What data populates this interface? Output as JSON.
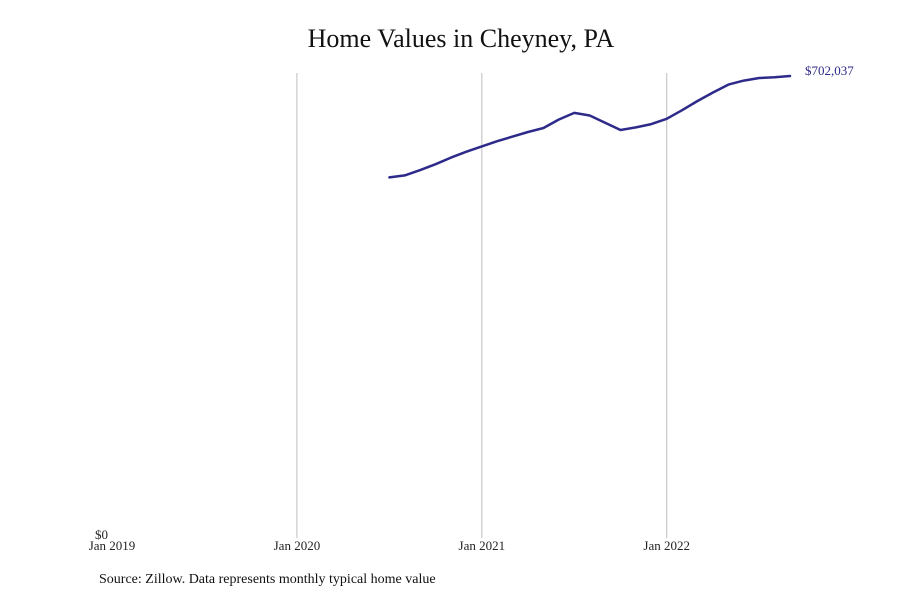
{
  "chart_data": {
    "type": "line",
    "title": "Home Values in Cheyney, PA",
    "source": "Source: Zillow. Data represents monthly typical home value",
    "xlabel": "",
    "ylabel": "",
    "xlim": [
      "2019-01",
      "2022-11"
    ],
    "ylim": [
      0,
      702037
    ],
    "grid": {
      "x": true,
      "y": false
    },
    "x_ticks": [
      {
        "date": "2019-01",
        "label": "Jan 2019"
      },
      {
        "date": "2020-01",
        "label": "Jan 2020"
      },
      {
        "date": "2021-01",
        "label": "Jan 2021"
      },
      {
        "date": "2022-01",
        "label": "Jan 2022"
      }
    ],
    "y_ticks": [
      {
        "value": 0,
        "label": "$0"
      }
    ],
    "line_color": "#2e2a8a",
    "end_label": "$702,037",
    "series": [
      {
        "x": [
          "2020-07",
          "2020-08",
          "2020-09",
          "2020-10",
          "2020-11",
          "2020-12",
          "2021-01",
          "2021-02",
          "2021-03",
          "2021-04",
          "2021-05",
          "2021-06",
          "2021-07",
          "2021-08",
          "2021-09",
          "2021-10",
          "2021-11",
          "2021-12",
          "2022-01",
          "2022-02",
          "2022-03",
          "2022-04",
          "2022-05",
          "2022-06",
          "2022-07",
          "2022-08",
          "2022-09"
        ],
        "values": [
          548000,
          551000,
          559000,
          568000,
          578000,
          587000,
          595000,
          603000,
          610000,
          617000,
          623000,
          636000,
          646000,
          642000,
          631000,
          620000,
          624000,
          629000,
          637000,
          650000,
          664000,
          677000,
          689000,
          695000,
          699000,
          700000,
          702037
        ]
      }
    ]
  }
}
